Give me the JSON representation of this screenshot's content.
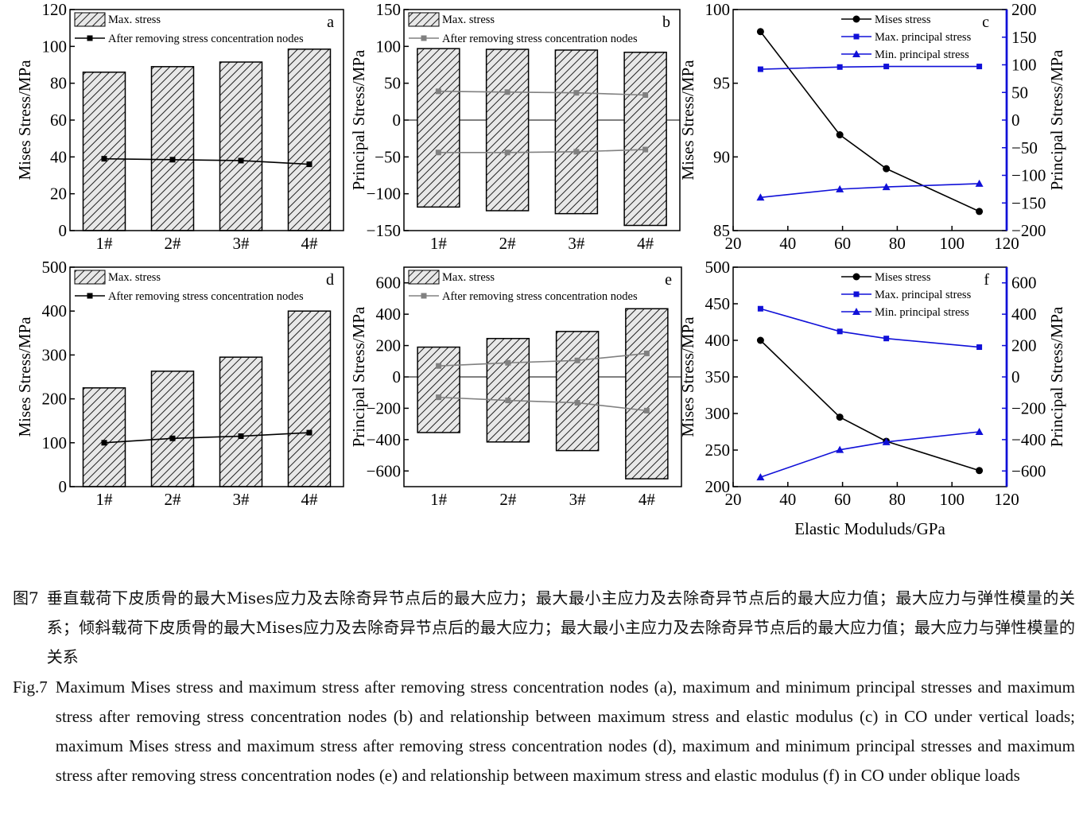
{
  "chart_data": [
    {
      "panel": "a",
      "type": "bar",
      "categories": [
        "1#",
        "2#",
        "3#",
        "4#"
      ],
      "ylabel": "Mises Stress/MPa",
      "ylim": [
        0,
        120
      ],
      "yticks": [
        "0",
        "20",
        "40",
        "60",
        "80",
        "100",
        "120"
      ],
      "legend_position": "top-left",
      "series": [
        {
          "name": "Max. stress",
          "kind": "bar",
          "color": "#000000",
          "values": [
            86,
            89,
            91.5,
            98.5
          ]
        },
        {
          "name": "After removing stress concentration nodes",
          "kind": "line",
          "marker": "square",
          "color": "#000000",
          "values": [
            39,
            38.5,
            38,
            36
          ]
        }
      ]
    },
    {
      "panel": "b",
      "type": "bar",
      "categories": [
        "1#",
        "2#",
        "3#",
        "4#"
      ],
      "ylabel": "Principal Stress/MPa",
      "ylim": [
        -150,
        150
      ],
      "yticks": [
        "−150",
        "−100",
        "−50",
        "0",
        "50",
        "100",
        "150"
      ],
      "legend_position": "top-left",
      "series": [
        {
          "name": "Max. stress",
          "kind": "bar",
          "color": "#000000",
          "values": [
            97,
            96,
            95,
            92
          ],
          "low": [
            -118,
            -123,
            -127,
            -143
          ]
        },
        {
          "name": "After removing stress concentration nodes",
          "kind": "line",
          "marker": "square",
          "color": "#808080",
          "values": [
            39,
            38,
            37,
            34
          ],
          "values_min": [
            -44,
            -44,
            -43,
            -40
          ]
        }
      ]
    },
    {
      "panel": "c",
      "type": "line",
      "x": [
        30,
        59,
        76,
        110
      ],
      "xlim": [
        20,
        120
      ],
      "xticks": [
        "20",
        "40",
        "60",
        "80",
        "100",
        "120"
      ],
      "ylabel": "Mises Stress/MPa",
      "ylim": [
        85,
        100
      ],
      "yticks": [
        "85",
        "90",
        "95",
        "100"
      ],
      "y2label": "Principal Stress/MPa",
      "y2lim": [
        -200,
        200
      ],
      "y2ticks": [
        "−200",
        "−150",
        "−100",
        "−50",
        "0",
        "50",
        "100",
        "150",
        "200"
      ],
      "legend_position": "top-right",
      "series": [
        {
          "name": "Mises stress",
          "axis": "left",
          "marker": "circle",
          "color": "#000000",
          "values": [
            98.5,
            91.5,
            89.2,
            86.3
          ]
        },
        {
          "name": "Max. principal stress",
          "axis": "right",
          "marker": "square",
          "color": "#1010d8",
          "values": [
            92,
            96,
            97,
            97
          ]
        },
        {
          "name": "Min. principal stress",
          "axis": "right",
          "marker": "triangle",
          "color": "#1010d8",
          "values": [
            -140,
            -125,
            -121,
            -115
          ]
        }
      ]
    },
    {
      "panel": "d",
      "type": "bar",
      "categories": [
        "1#",
        "2#",
        "3#",
        "4#"
      ],
      "ylabel": "Mises Stress/MPa",
      "ylim": [
        0,
        500
      ],
      "yticks": [
        "0",
        "100",
        "200",
        "300",
        "400",
        "500"
      ],
      "legend_position": "top-left",
      "series": [
        {
          "name": "Max. stress",
          "kind": "bar",
          "color": "#000000",
          "values": [
            225,
            263,
            295,
            400
          ]
        },
        {
          "name": "After removing stress concentration nodes",
          "kind": "line",
          "marker": "square",
          "color": "#000000",
          "values": [
            100,
            110,
            115,
            123
          ]
        }
      ]
    },
    {
      "panel": "e",
      "type": "bar",
      "categories": [
        "1#",
        "2#",
        "3#",
        "4#"
      ],
      "ylabel": "Principal Stress/MPa",
      "ylim": [
        -700,
        700
      ],
      "yticks": [
        "−600",
        "−400",
        "−200",
        "0",
        "200",
        "400",
        "600"
      ],
      "legend_position": "top-left",
      "series": [
        {
          "name": "Max. stress",
          "kind": "bar",
          "color": "#000000",
          "values": [
            190,
            245,
            290,
            435
          ],
          "low": [
            -355,
            -415,
            -470,
            -650
          ]
        },
        {
          "name": "After removing stress concentration nodes",
          "kind": "line",
          "marker": "square",
          "color": "#808080",
          "values": [
            70,
            90,
            105,
            150
          ],
          "values_min": [
            -130,
            -150,
            -165,
            -215
          ]
        }
      ]
    },
    {
      "panel": "f",
      "type": "line",
      "x": [
        30,
        59,
        76,
        110
      ],
      "xlim": [
        20,
        120
      ],
      "xticks": [
        "20",
        "40",
        "60",
        "80",
        "100",
        "120"
      ],
      "xlabel": "Elastic Moduluds/GPa",
      "ylabel": "Mises Stress/MPa",
      "ylim": [
        200,
        500
      ],
      "yticks": [
        "200",
        "250",
        "300",
        "350",
        "400",
        "450",
        "500"
      ],
      "y2label": "Principal Stress/MPa",
      "y2lim": [
        -700,
        700
      ],
      "y2ticks": [
        "−600",
        "−400",
        "−200",
        "0",
        "200",
        "400",
        "600"
      ],
      "legend_position": "top-right",
      "series": [
        {
          "name": "Mises stress",
          "axis": "left",
          "marker": "circle",
          "color": "#000000",
          "values": [
            400,
            295,
            262,
            222
          ]
        },
        {
          "name": "Max. principal stress",
          "axis": "right",
          "marker": "square",
          "color": "#1010d8",
          "values": [
            435,
            290,
            245,
            190
          ]
        },
        {
          "name": "Min. principal stress",
          "axis": "right",
          "marker": "triangle",
          "color": "#1010d8",
          "values": [
            -640,
            -465,
            -415,
            -350
          ]
        }
      ]
    }
  ],
  "caption": {
    "cn_label": "图7",
    "cn_text": "垂直载荷下皮质骨的最大Mises应力及去除奇异节点后的最大应力；最大最小主应力及去除奇异节点后的最大应力值；最大应力与弹性模量的关系；倾斜载荷下皮质骨的最大Mises应力及去除奇异节点后的最大应力；最大最小主应力及去除奇异节点后的最大应力值；最大应力与弹性模量的关系",
    "en_label": "Fig.7",
    "en_text": "Maximum Mises stress and maximum stress after removing stress concentration nodes (a), maximum and minimum principal stresses and maximum stress after removing stress concentration nodes (b) and relationship between maximum stress and elastic modulus (c) in CO under vertical loads; maximum Mises stress and maximum stress after removing stress concentration nodes (d), maximum and minimum principal stresses and maximum stress after removing stress concentration nodes (e) and relationship between maximum stress and elastic modulus (f) in CO under oblique loads"
  }
}
